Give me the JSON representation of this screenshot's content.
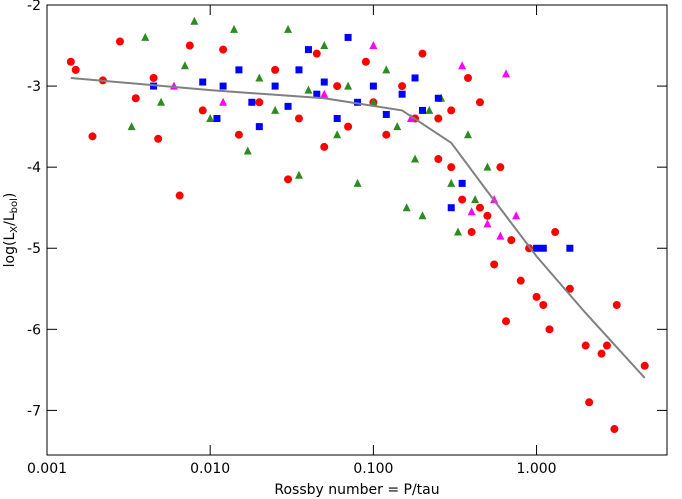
{
  "chart_data": {
    "type": "scatter",
    "xlabel": "Rossby number = P/tau",
    "ylabel": [
      "log(L",
      "X",
      "/L",
      "bol",
      ")"
    ],
    "xscale": "log",
    "xlim": [
      0.001,
      6.3
    ],
    "ylim": [
      -7.55,
      -2
    ],
    "xticks": [
      {
        "value": 0.001,
        "label": "0.001"
      },
      {
        "value": 0.01,
        "label": "0.010"
      },
      {
        "value": 0.1,
        "label": "0.100"
      },
      {
        "value": 1,
        "label": "1.000"
      }
    ],
    "yticks": [
      -2,
      -3,
      -4,
      -5,
      -6,
      -7
    ],
    "series": [
      {
        "name": "red",
        "marker": "circle",
        "color": "#ff0000",
        "x": [
          0.0014,
          0.0015,
          0.0019,
          0.0022,
          0.0028,
          0.0035,
          0.0045,
          0.0048,
          0.0065,
          0.0075,
          0.009,
          0.012,
          0.015,
          0.02,
          0.025,
          0.03,
          0.035,
          0.045,
          0.05,
          0.06,
          0.07,
          0.09,
          0.1,
          0.12,
          0.15,
          0.18,
          0.2,
          0.25,
          0.3,
          0.35,
          0.4,
          0.45,
          0.5,
          0.55,
          0.6,
          0.65,
          0.7,
          0.8,
          0.9,
          1.0,
          1.1,
          1.2,
          1.3,
          1.6,
          2.0,
          2.1,
          2.5,
          2.7,
          3.0,
          3.1,
          4.6,
          0.25,
          0.3,
          0.45,
          0.38
        ],
        "values": [
          -2.7,
          -2.8,
          -3.62,
          -2.93,
          -2.45,
          -3.15,
          -2.9,
          -3.65,
          -4.35,
          -2.5,
          -3.3,
          -2.55,
          -3.6,
          -3.2,
          -2.8,
          -4.15,
          -3.4,
          -2.6,
          -3.75,
          -3.0,
          -3.5,
          -2.7,
          -3.2,
          -3.6,
          -3.0,
          -3.4,
          -2.6,
          -3.9,
          -3.3,
          -4.4,
          -4.8,
          -3.2,
          -4.6,
          -5.2,
          -4.0,
          -5.9,
          -4.9,
          -5.4,
          -5.0,
          -5.6,
          -5.7,
          -6.0,
          -4.8,
          -5.5,
          -6.2,
          -6.9,
          -6.3,
          -6.2,
          -7.23,
          -5.7,
          -6.45,
          -3.4,
          -4.0,
          -4.5,
          -2.9
        ]
      },
      {
        "name": "green",
        "marker": "triangle",
        "color": "#2e8b22",
        "x": [
          0.0033,
          0.004,
          0.005,
          0.007,
          0.008,
          0.01,
          0.014,
          0.017,
          0.02,
          0.025,
          0.03,
          0.035,
          0.04,
          0.05,
          0.06,
          0.07,
          0.08,
          0.1,
          0.12,
          0.14,
          0.16,
          0.18,
          0.2,
          0.22,
          0.26,
          0.3,
          0.33,
          0.38,
          0.42,
          0.5
        ],
        "values": [
          -3.5,
          -2.4,
          -3.2,
          -2.75,
          -2.2,
          -3.4,
          -2.3,
          -3.8,
          -2.9,
          -3.3,
          -2.3,
          -4.1,
          -3.05,
          -2.5,
          -3.6,
          -3.0,
          -4.2,
          -3.2,
          -2.8,
          -3.5,
          -4.5,
          -3.9,
          -4.6,
          -3.3,
          -3.15,
          -4.2,
          -4.8,
          -3.6,
          -4.4,
          -4.0
        ]
      },
      {
        "name": "blue",
        "marker": "square",
        "color": "#0000ff",
        "x": [
          0.0045,
          0.009,
          0.011,
          0.012,
          0.015,
          0.018,
          0.02,
          0.025,
          0.03,
          0.035,
          0.04,
          0.045,
          0.05,
          0.06,
          0.07,
          0.08,
          0.1,
          0.12,
          0.15,
          0.18,
          0.2,
          0.25,
          0.3,
          0.35,
          1.0,
          1.1,
          1.6
        ],
        "values": [
          -3.0,
          -2.95,
          -3.4,
          -3.0,
          -2.8,
          -3.2,
          -3.5,
          -3.0,
          -3.25,
          -2.8,
          -2.55,
          -3.1,
          -2.95,
          -3.4,
          -2.4,
          -3.2,
          -3.0,
          -3.35,
          -3.1,
          -2.9,
          -3.3,
          -3.15,
          -4.5,
          -4.2,
          -5.0,
          -5.0,
          -5.0
        ]
      },
      {
        "name": "magenta",
        "marker": "triangle",
        "color": "#ff00ff",
        "x": [
          0.006,
          0.012,
          0.05,
          0.1,
          0.17,
          0.35,
          0.4,
          0.5,
          0.55,
          0.6,
          0.65,
          0.75
        ],
        "values": [
          -3.0,
          -3.2,
          -3.1,
          -2.5,
          -3.4,
          -2.75,
          -4.55,
          -4.7,
          -4.4,
          -4.85,
          -2.85,
          -4.6
        ]
      }
    ],
    "fit": {
      "color": "#808080",
      "x": [
        0.0014,
        0.01,
        0.05,
        0.15,
        0.3,
        0.5,
        1.0,
        2.0,
        4.6
      ],
      "values": [
        -2.9,
        -3.05,
        -3.15,
        -3.3,
        -3.7,
        -4.3,
        -5.1,
        -5.8,
        -6.6
      ]
    }
  }
}
